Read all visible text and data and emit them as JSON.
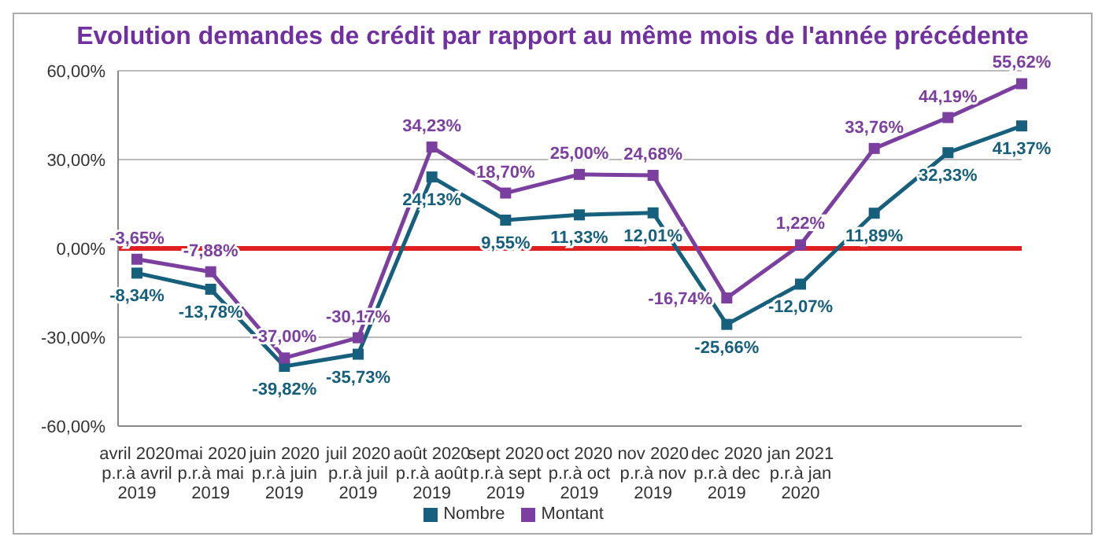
{
  "chart_data": {
    "type": "line",
    "title": "Evolution demandes de crédit par rapport au même mois de l'année précédente",
    "categories": [
      "avril 2020\np.r.à avril\n2019",
      "mai 2020\np.r.à mai\n2019",
      "juin 2020\np.r.à juin\n2019",
      "juil 2020\np.r.à juil\n2019",
      "août 2020\np.r.à août\n2019",
      "sept 2020\np.r.à sept\n2019",
      "oct 2020\np.r.à oct\n2019",
      "nov 2020\np.r.à nov\n2019",
      "dec 2020\np.r.à dec\n2019",
      "jan 2021\np.r.à jan\n2020",
      null,
      null,
      null
    ],
    "series": [
      {
        "name": "Nombre",
        "color": "#17607d",
        "values": [
          -8.34,
          -13.78,
          -39.82,
          -35.73,
          24.13,
          9.55,
          11.33,
          12.01,
          -25.66,
          -12.07,
          11.89,
          32.33,
          41.37
        ],
        "value_labels": [
          "-8,34%",
          "-13,78%",
          "-39,82%",
          "-35,73%",
          "24,13%",
          "9,55%",
          "11,33%",
          "12,01%",
          "-25,66%",
          "-12,07%",
          "11,89%",
          "32,33%",
          "41,37%"
        ]
      },
      {
        "name": "Montant",
        "color": "#7b3fa0",
        "values": [
          -3.65,
          -7.88,
          -37.0,
          -30.17,
          34.23,
          18.7,
          25.0,
          24.68,
          -16.74,
          1.22,
          33.76,
          44.19,
          55.62
        ],
        "value_labels": [
          "-3,65%",
          "-7,88%",
          "-37,00%",
          "-30,17%",
          "34,23%",
          "18,70%",
          "25,00%",
          "24,68%",
          "-16,74%",
          "1,22%",
          "33,76%",
          "44,19%",
          "55,62%"
        ]
      }
    ],
    "ylim": [
      -60,
      60
    ],
    "yticks": [
      {
        "value": -60,
        "label": "-60,00%"
      },
      {
        "value": -30,
        "label": "-30,00%"
      },
      {
        "value": 0,
        "label": "0,00%"
      },
      {
        "value": 30,
        "label": "30,00%"
      },
      {
        "value": 60,
        "label": "60,00%"
      }
    ],
    "ref_lines": [
      {
        "axis": "y",
        "value": 0,
        "color": "#e02020"
      }
    ],
    "grid": "y",
    "legend": "bottom",
    "marker": "square",
    "line_style": "solid"
  }
}
